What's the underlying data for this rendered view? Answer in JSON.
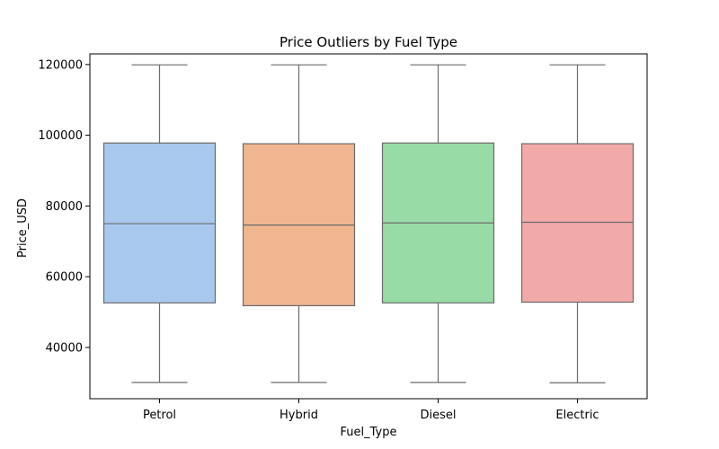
{
  "chart_data": {
    "type": "box",
    "title": "Price Outliers by Fuel Type",
    "xlabel": "Fuel_Type",
    "ylabel": "Price_USD",
    "ylim": [
      25500,
      123000
    ],
    "yticks": [
      40000,
      60000,
      80000,
      100000,
      120000
    ],
    "categories": [
      "Petrol",
      "Hybrid",
      "Diesel",
      "Electric"
    ],
    "boxes": [
      {
        "whisker_low": 30100,
        "q1": 52600,
        "median": 75000,
        "q3": 97800,
        "whisker_high": 119900
      },
      {
        "whisker_low": 30100,
        "q1": 51800,
        "median": 74600,
        "q3": 97600,
        "whisker_high": 119900
      },
      {
        "whisker_low": 30100,
        "q1": 52600,
        "median": 75200,
        "q3": 97800,
        "whisker_high": 119900
      },
      {
        "whisker_low": 30000,
        "q1": 52800,
        "median": 75400,
        "q3": 97600,
        "whisker_high": 119900
      }
    ],
    "colors": [
      "#a9c8ed",
      "#f0b690",
      "#98dba6",
      "#f2aaa9"
    ],
    "line_color": "#6b6b6b",
    "grid": false,
    "legend": "none"
  }
}
